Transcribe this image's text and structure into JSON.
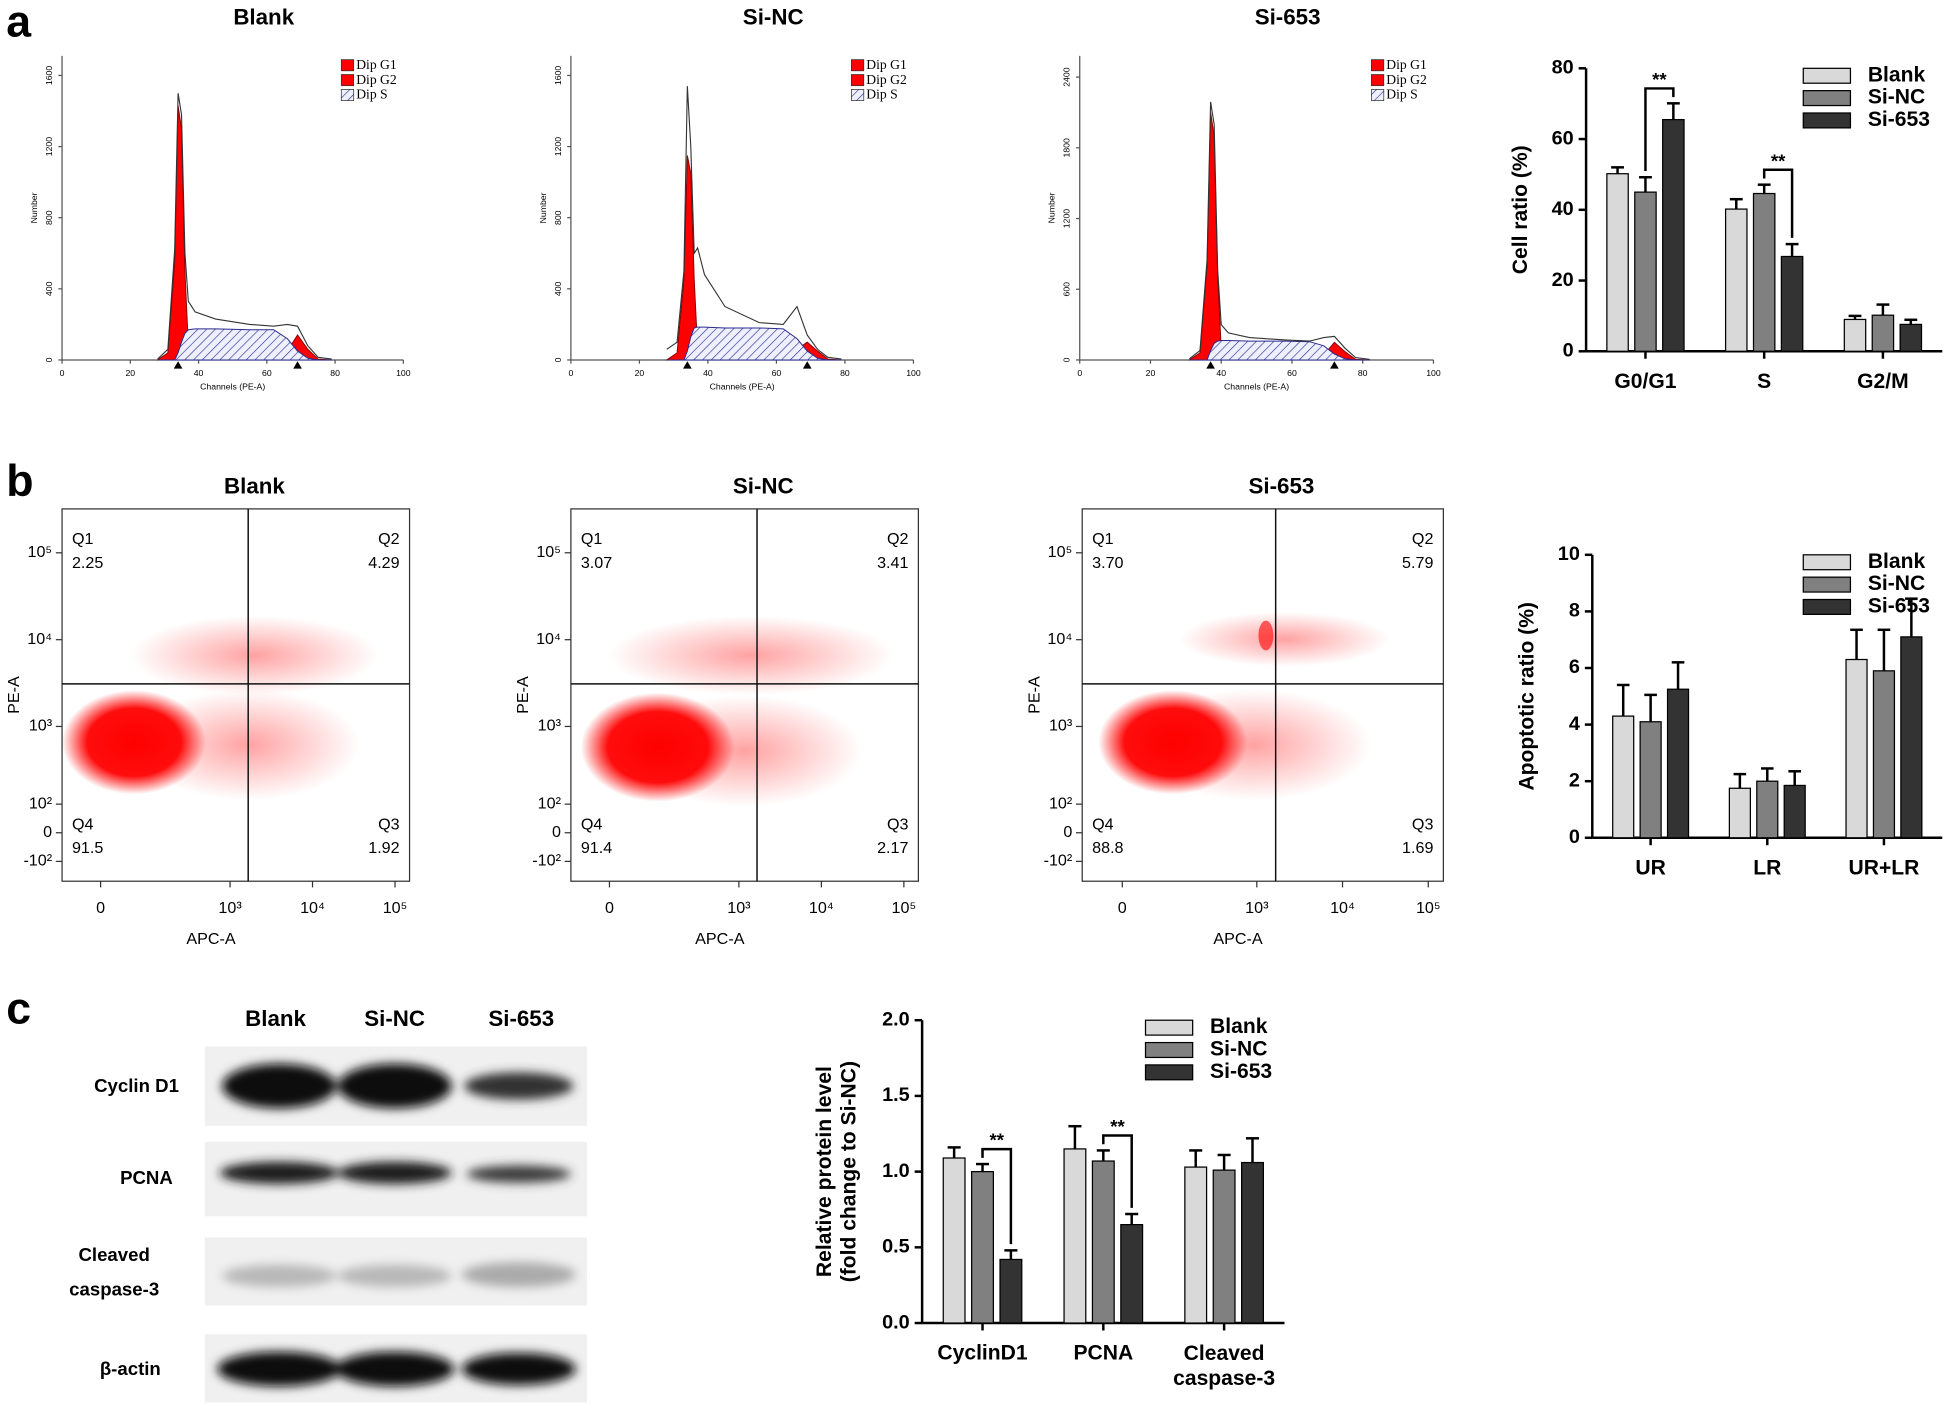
{
  "panels": [
    "a",
    "b",
    "c"
  ],
  "blot": {
    "lanes": [
      "Blank",
      "Si-NC",
      "Si-653"
    ],
    "rows": [
      [
        "Cyclin D1"
      ],
      [
        "PCNA"
      ],
      [
        "Cleaved",
        "caspase-3"
      ],
      [
        "β-actin"
      ]
    ]
  },
  "chart_data": [
    {
      "type": "area",
      "title": "Blank",
      "xlabel": "Channels (PE-A)",
      "ylabel": "Number",
      "x": [
        28,
        31,
        33,
        34,
        35,
        36,
        37,
        39,
        45,
        55,
        62,
        66,
        69,
        72,
        75,
        79
      ],
      "series": [
        {
          "name": "Dip G1",
          "color": "#ff0000",
          "style": "solid",
          "values": [
            0,
            40,
            550,
            1430,
            1300,
            500,
            80,
            0,
            0,
            0,
            0,
            0,
            0,
            0,
            0,
            0
          ]
        },
        {
          "name": "Dip G2",
          "color": "#ff0000",
          "style": "solid",
          "values": [
            0,
            0,
            0,
            0,
            0,
            0,
            0,
            0,
            0,
            0,
            0,
            50,
            140,
            60,
            5,
            0
          ]
        },
        {
          "name": "Dip S",
          "color": "#2b2b8f",
          "style": "hatch",
          "values": [
            0,
            0,
            0,
            40,
            100,
            150,
            170,
            175,
            175,
            170,
            170,
            120,
            50,
            10,
            0,
            0
          ]
        },
        {
          "color": "#333333",
          "style": "line",
          "values": [
            5,
            60,
            620,
            1500,
            1380,
            600,
            330,
            270,
            230,
            200,
            190,
            200,
            190,
            80,
            15,
            5
          ]
        }
      ],
      "xlim": [
        0,
        100
      ],
      "ylim": [
        0,
        1710
      ],
      "xticks": [
        0,
        20,
        40,
        60,
        80,
        100
      ],
      "yticks": [
        0,
        400,
        800,
        1200,
        1600
      ]
    },
    {
      "type": "area",
      "title": "Si-NC",
      "xlabel": "Channels (PE-A)",
      "ylabel": "Number",
      "x": [
        28,
        31,
        33,
        34,
        35,
        36,
        37,
        39,
        45,
        55,
        62,
        66,
        69,
        72,
        75,
        79
      ],
      "series": [
        {
          "name": "Dip G1",
          "color": "#ff0000",
          "style": "solid",
          "values": [
            0,
            40,
            450,
            1150,
            1050,
            450,
            60,
            0,
            0,
            0,
            0,
            0,
            0,
            0,
            0,
            0
          ]
        },
        {
          "name": "Dip G2",
          "color": "#ff0000",
          "style": "solid",
          "values": [
            0,
            0,
            0,
            0,
            0,
            0,
            0,
            0,
            0,
            0,
            10,
            60,
            100,
            50,
            5,
            0
          ]
        },
        {
          "name": "Dip S",
          "color": "#2b2b8f",
          "style": "hatch",
          "values": [
            0,
            0,
            0,
            50,
            130,
            180,
            185,
            185,
            180,
            180,
            175,
            120,
            50,
            10,
            0,
            0
          ]
        },
        {
          "color": "#333333",
          "style": "line",
          "values": [
            60,
            100,
            500,
            1540,
            1200,
            600,
            630,
            480,
            300,
            210,
            200,
            300,
            140,
            60,
            15,
            5
          ]
        }
      ],
      "xlim": [
        0,
        100
      ],
      "ylim": [
        0,
        1710
      ],
      "xticks": [
        0,
        20,
        40,
        60,
        80,
        100
      ],
      "yticks": [
        0,
        400,
        800,
        1200,
        1600
      ]
    },
    {
      "type": "area",
      "title": "Si-653",
      "xlabel": "Channels (PE-A)",
      "ylabel": "Number",
      "x": [
        31,
        34,
        36,
        37,
        38,
        39,
        40,
        42,
        48,
        58,
        65,
        69,
        72,
        75,
        78,
        82
      ],
      "series": [
        {
          "name": "Dip G1",
          "color": "#ff0000",
          "style": "solid",
          "values": [
            0,
            60,
            800,
            2100,
            1900,
            700,
            100,
            0,
            0,
            0,
            0,
            0,
            0,
            0,
            0,
            0
          ]
        },
        {
          "name": "Dip G2",
          "color": "#ff0000",
          "style": "solid",
          "values": [
            0,
            0,
            0,
            0,
            0,
            0,
            0,
            0,
            0,
            0,
            0,
            40,
            150,
            70,
            5,
            0
          ]
        },
        {
          "name": "Dip S",
          "color": "#2b2b8f",
          "style": "hatch",
          "values": [
            0,
            0,
            0,
            80,
            140,
            160,
            165,
            165,
            160,
            160,
            155,
            120,
            50,
            10,
            0,
            0
          ]
        },
        {
          "color": "#333333",
          "style": "line",
          "values": [
            10,
            80,
            850,
            2190,
            2000,
            760,
            300,
            230,
            190,
            170,
            160,
            190,
            200,
            100,
            20,
            5
          ]
        }
      ],
      "xlim": [
        0,
        100
      ],
      "ylim": [
        0,
        2580
      ],
      "xticks": [
        0,
        20,
        40,
        60,
        80,
        100
      ],
      "yticks": [
        0,
        600,
        1200,
        1800,
        2400
      ]
    },
    {
      "type": "bar",
      "ylabel": "Cell ratio (%)",
      "categories": [
        "G0/G1",
        "S",
        "G2/M"
      ],
      "series": [
        {
          "name": "Blank",
          "color": "#d9d9d9",
          "values": [
            50.2,
            40.2,
            9.0
          ],
          "errors": [
            1.8,
            2.8,
            1.0
          ]
        },
        {
          "name": "Si-NC",
          "color": "#808080",
          "values": [
            45.0,
            44.6,
            10.2
          ],
          "errors": [
            4.2,
            2.5,
            3.0
          ]
        },
        {
          "name": "Si-653",
          "color": "#333333",
          "values": [
            65.5,
            26.8,
            7.6
          ],
          "errors": [
            4.6,
            3.5,
            1.3
          ]
        }
      ],
      "ylim": [
        0,
        80
      ],
      "yticks": [
        0,
        20,
        40,
        60,
        80
      ],
      "legend": "upper right",
      "significance": [
        {
          "text": "**",
          "category": "G0/G1",
          "between": [
            "Si-NC",
            "Si-653"
          ]
        },
        {
          "text": "**",
          "category": "S",
          "between": [
            "Si-NC",
            "Si-653"
          ]
        }
      ]
    },
    {
      "type": "scatter",
      "title": "Blank",
      "xlabel": "APC-A",
      "ylabel": "PE-A",
      "xscale": "asinh",
      "yscale": "asinh",
      "xlim": [
        -70,
        150000
      ],
      "ylim": [
        -200,
        320000
      ],
      "xticks": [
        0,
        {
          "value": 1000,
          "label": "10³"
        },
        {
          "value": 10000,
          "label": "10⁴"
        },
        {
          "value": 100000,
          "label": "10⁵"
        }
      ],
      "yticks": [
        {
          "value": -100,
          "label": "-10²"
        },
        0,
        {
          "value": 100,
          "label": "10²"
        },
        {
          "value": 1000,
          "label": "10³"
        },
        {
          "value": 10000,
          "label": "10⁴"
        },
        {
          "value": 100000,
          "label": "10⁵"
        }
      ],
      "gates": {
        "x": 1660,
        "y": 3100
      },
      "quadrants": [
        {
          "name": "Q1",
          "value": 2.25
        },
        {
          "name": "Q2",
          "value": 4.29
        },
        {
          "name": "Q3",
          "value": 1.92
        },
        {
          "name": "Q4",
          "value": 91.5
        }
      ]
    },
    {
      "type": "scatter",
      "title": "Si-NC",
      "xlabel": "APC-A",
      "ylabel": "PE-A",
      "xscale": "asinh",
      "yscale": "asinh",
      "xlim": [
        -70,
        150000
      ],
      "ylim": [
        -200,
        320000
      ],
      "xticks": [
        0,
        {
          "value": 1000,
          "label": "10³"
        },
        {
          "value": 10000,
          "label": "10⁴"
        },
        {
          "value": 100000,
          "label": "10⁵"
        }
      ],
      "yticks": [
        {
          "value": -100,
          "label": "-10²"
        },
        0,
        {
          "value": 100,
          "label": "10²"
        },
        {
          "value": 1000,
          "label": "10³"
        },
        {
          "value": 10000,
          "label": "10⁴"
        },
        {
          "value": 100000,
          "label": "10⁵"
        }
      ],
      "gates": {
        "x": 1660,
        "y": 3100
      },
      "quadrants": [
        {
          "name": "Q1",
          "value": 3.07
        },
        {
          "name": "Q2",
          "value": 3.41
        },
        {
          "name": "Q3",
          "value": 2.17
        },
        {
          "name": "Q4",
          "value": 91.4
        }
      ]
    },
    {
      "type": "scatter",
      "title": "Si-653",
      "xlabel": "APC-A",
      "ylabel": "PE-A",
      "xscale": "asinh",
      "yscale": "asinh",
      "xlim": [
        -70,
        150000
      ],
      "ylim": [
        -200,
        320000
      ],
      "xticks": [
        0,
        {
          "value": 1000,
          "label": "10³"
        },
        {
          "value": 10000,
          "label": "10⁴"
        },
        {
          "value": 100000,
          "label": "10⁵"
        }
      ],
      "yticks": [
        {
          "value": -100,
          "label": "-10²"
        },
        0,
        {
          "value": 100,
          "label": "10²"
        },
        {
          "value": 1000,
          "label": "10³"
        },
        {
          "value": 10000,
          "label": "10⁴"
        },
        {
          "value": 100000,
          "label": "10⁵"
        }
      ],
      "gates": {
        "x": 1660,
        "y": 3100
      },
      "quadrants": [
        {
          "name": "Q1",
          "value": 3.7,
          "label": "3.70"
        },
        {
          "name": "Q2",
          "value": 5.79
        },
        {
          "name": "Q3",
          "value": 1.69
        },
        {
          "name": "Q4",
          "value": 88.8
        }
      ]
    },
    {
      "type": "bar",
      "ylabel": "Apoptotic ratio (%)",
      "categories": [
        "UR",
        "LR",
        "UR+LR"
      ],
      "series": [
        {
          "name": "Blank",
          "color": "#d9d9d9",
          "values": [
            4.3,
            1.75,
            6.3
          ],
          "errors": [
            1.1,
            0.5,
            1.05
          ]
        },
        {
          "name": "Si-NC",
          "color": "#808080",
          "values": [
            4.1,
            2.0,
            5.9
          ],
          "errors": [
            0.95,
            0.45,
            1.45
          ]
        },
        {
          "name": "Si-653",
          "color": "#333333",
          "values": [
            5.25,
            1.85,
            7.1
          ],
          "errors": [
            0.95,
            0.5,
            1.35
          ]
        }
      ],
      "ylim": [
        0,
        10
      ],
      "yticks": [
        0,
        2,
        4,
        6,
        8,
        10
      ],
      "legend": "upper right"
    },
    {
      "type": "bar",
      "ylabel": [
        "Relative protein level",
        "(fold change to Si-NC)"
      ],
      "categories": [
        "CyclinD1",
        "PCNA",
        "Cleaved caspase-3"
      ],
      "series": [
        {
          "name": "Blank",
          "color": "#d9d9d9",
          "values": [
            1.09,
            1.15,
            1.03
          ],
          "errors": [
            0.07,
            0.15,
            0.11
          ]
        },
        {
          "name": "Si-NC",
          "color": "#808080",
          "values": [
            1.0,
            1.07,
            1.01
          ],
          "errors": [
            0.05,
            0.07,
            0.1
          ]
        },
        {
          "name": "Si-653",
          "color": "#333333",
          "values": [
            0.42,
            0.65,
            1.06
          ],
          "errors": [
            0.06,
            0.07,
            0.16
          ]
        }
      ],
      "ylim": [
        0,
        2
      ],
      "yticks": [
        {
          "value": 0,
          "label": "0.0"
        },
        0.5,
        {
          "value": 1,
          "label": "1.0"
        },
        1.5,
        {
          "value": 2,
          "label": "2.0"
        }
      ],
      "legend": "upper right",
      "significance": [
        {
          "text": "**",
          "category": "CyclinD1",
          "between": [
            "Si-NC",
            "Si-653"
          ]
        },
        {
          "text": "**",
          "category": "PCNA",
          "between": [
            "Si-NC",
            "Si-653"
          ]
        }
      ]
    }
  ]
}
